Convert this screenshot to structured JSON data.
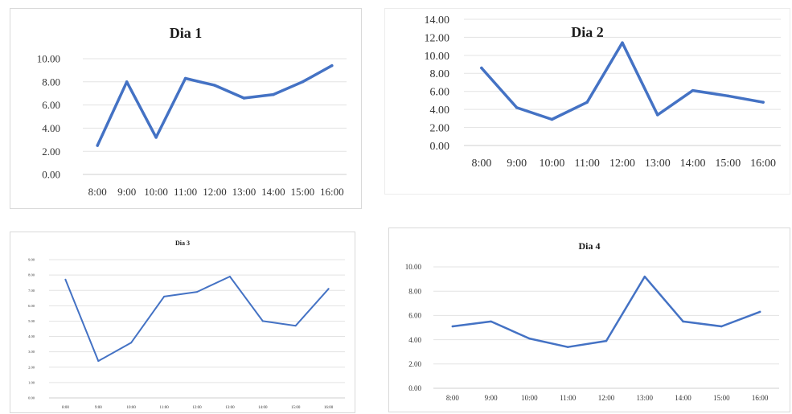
{
  "chart_data": [
    {
      "type": "line",
      "title": "Dia 1",
      "categories": [
        "8:00",
        "9:00",
        "10:00",
        "11:00",
        "12:00",
        "13:00",
        "14:00",
        "15:00",
        "16:00"
      ],
      "series": [
        {
          "values": [
            2.5,
            8.0,
            3.2,
            8.3,
            7.7,
            6.6,
            6.9,
            8.0,
            9.4
          ]
        }
      ],
      "ylim": [
        0,
        10
      ],
      "yticks": [
        "0.00",
        "2.00",
        "4.00",
        "6.00",
        "8.00",
        "10.00"
      ],
      "grid": true,
      "line_color": "#4472c4"
    },
    {
      "type": "line",
      "title": "Dia 2",
      "categories": [
        "8:00",
        "9:00",
        "10:00",
        "11:00",
        "12:00",
        "13:00",
        "14:00",
        "15:00",
        "16:00"
      ],
      "series": [
        {
          "values": [
            8.6,
            4.2,
            2.9,
            4.8,
            11.4,
            3.4,
            6.1,
            5.5,
            4.8
          ]
        }
      ],
      "ylim": [
        0,
        14
      ],
      "yticks": [
        "0.00",
        "2.00",
        "4.00",
        "6.00",
        "8.00",
        "10.00",
        "12.00",
        "14.00"
      ],
      "grid": true,
      "line_color": "#4472c4"
    },
    {
      "type": "line",
      "title": "Dia 3",
      "categories": [
        "8:00",
        "9:00",
        "10:00",
        "11:00",
        "12:00",
        "13:00",
        "14:00",
        "15:00",
        "16:00"
      ],
      "series": [
        {
          "values": [
            7.7,
            2.4,
            3.6,
            6.6,
            6.9,
            7.9,
            5.0,
            4.7,
            7.1
          ]
        }
      ],
      "ylim": [
        0,
        9
      ],
      "yticks": [
        "0.00",
        "1.00",
        "2.00",
        "3.00",
        "4.00",
        "5.00",
        "6.00",
        "7.00",
        "8.00",
        "9.00"
      ],
      "grid": true,
      "line_color": "#4472c4"
    },
    {
      "type": "line",
      "title": "Dia 4",
      "categories": [
        "8:00",
        "9:00",
        "10:00",
        "11:00",
        "12:00",
        "13:00",
        "14:00",
        "15:00",
        "16:00"
      ],
      "series": [
        {
          "values": [
            5.1,
            5.5,
            4.1,
            3.4,
            3.9,
            9.2,
            5.5,
            5.1,
            6.3
          ]
        }
      ],
      "ylim": [
        0,
        10
      ],
      "yticks": [
        "0.00",
        "2.00",
        "4.00",
        "6.00",
        "8.00",
        "10.00"
      ],
      "grid": true,
      "line_color": "#4472c4"
    }
  ]
}
